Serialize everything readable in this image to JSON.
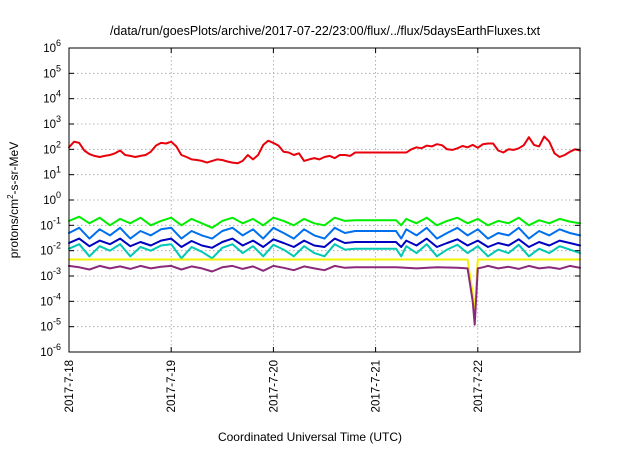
{
  "chart_data": {
    "type": "line",
    "title": "/data/run/goesPlots/archive/2017-07-22/23:00/flux/../flux/5daysEarthFluxes.txt",
    "xlabel": "Coordinated Universal Time (UTC)",
    "ylabel_main": "protons/cm",
    "ylabel_sup": "2",
    "ylabel_tail": "-s-sr-MeV",
    "x_ticks": [
      {
        "day": 0,
        "label": "2017-7-18"
      },
      {
        "day": 1,
        "label": "2017-7-19"
      },
      {
        "day": 2,
        "label": "2017-7-20"
      },
      {
        "day": 3,
        "label": "2017-7-21"
      },
      {
        "day": 4,
        "label": "2017-7-22"
      }
    ],
    "y_ticks": [
      {
        "exp": -6,
        "label": "10",
        "sup": "-6"
      },
      {
        "exp": -5,
        "label": "10",
        "sup": "-5"
      },
      {
        "exp": -4,
        "label": "10",
        "sup": "-4"
      },
      {
        "exp": -3,
        "label": "10",
        "sup": "-3"
      },
      {
        "exp": -2,
        "label": "10",
        "sup": "-2"
      },
      {
        "exp": -1,
        "label": "10",
        "sup": "-1"
      },
      {
        "exp": 0,
        "label": "10",
        "sup": "0"
      },
      {
        "exp": 1,
        "label": "10",
        "sup": "1"
      },
      {
        "exp": 2,
        "label": "10",
        "sup": "2"
      },
      {
        "exp": 3,
        "label": "10",
        "sup": "3"
      },
      {
        "exp": 4,
        "label": "10",
        "sup": "4"
      },
      {
        "exp": 5,
        "label": "10",
        "sup": "5"
      },
      {
        "exp": 6,
        "label": "10",
        "sup": "6"
      }
    ],
    "xlim_days": [
      0,
      5
    ],
    "ylim_log10": [
      -6,
      6
    ],
    "y_scale": "log",
    "grid": true,
    "series": [
      {
        "color": "#e8000b",
        "x": [
          0,
          0.05,
          0.1,
          0.15,
          0.2,
          0.25,
          0.3,
          0.35,
          0.4,
          0.45,
          0.5,
          0.55,
          0.6,
          0.65,
          0.7,
          0.75,
          0.8,
          0.85,
          0.9,
          0.95,
          1.0,
          1.05,
          1.1,
          1.15,
          1.2,
          1.25,
          1.3,
          1.35,
          1.4,
          1.45,
          1.5,
          1.55,
          1.6,
          1.65,
          1.7,
          1.75,
          1.8,
          1.85,
          1.9,
          1.95,
          2.0,
          2.05,
          2.1,
          2.15,
          2.2,
          2.25,
          2.3,
          2.35,
          2.4,
          2.45,
          2.5,
          2.55,
          2.6,
          2.65,
          2.7,
          2.75,
          2.8,
          3.0,
          3.2,
          3.3,
          3.35,
          3.4,
          3.45,
          3.5,
          3.55,
          3.6,
          3.65,
          3.7,
          3.75,
          3.8,
          3.85,
          3.9,
          3.95,
          4.0,
          4.05,
          4.1,
          4.15,
          4.2,
          4.25,
          4.3,
          4.35,
          4.4,
          4.45,
          4.5,
          4.55,
          4.6,
          4.65,
          4.7,
          4.75,
          4.8,
          4.85,
          4.9,
          4.95,
          5.0
        ],
        "y": [
          120,
          200,
          180,
          90,
          65,
          55,
          50,
          55,
          60,
          70,
          90,
          60,
          55,
          50,
          55,
          60,
          80,
          140,
          180,
          170,
          200,
          130,
          60,
          50,
          40,
          38,
          35,
          30,
          35,
          40,
          38,
          33,
          30,
          28,
          35,
          60,
          40,
          60,
          150,
          220,
          180,
          140,
          80,
          75,
          60,
          70,
          35,
          40,
          45,
          40,
          50,
          55,
          45,
          60,
          60,
          55,
          75,
          75,
          75,
          75,
          100,
          120,
          110,
          140,
          130,
          160,
          145,
          100,
          95,
          110,
          135,
          120,
          150,
          115,
          160,
          170,
          170,
          90,
          75,
          100,
          95,
          110,
          145,
          300,
          150,
          130,
          320,
          200,
          70,
          50,
          60,
          80,
          100,
          90
        ]
      },
      {
        "color": "#00ee00",
        "x": [
          0,
          0.1,
          0.2,
          0.3,
          0.4,
          0.5,
          0.6,
          0.7,
          0.8,
          0.9,
          1.0,
          1.1,
          1.2,
          1.3,
          1.4,
          1.5,
          1.6,
          1.7,
          1.8,
          1.9,
          2.0,
          2.1,
          2.2,
          2.3,
          2.4,
          2.5,
          2.6,
          2.7,
          2.8,
          3.0,
          3.2,
          3.25,
          3.3,
          3.4,
          3.5,
          3.6,
          3.7,
          3.8,
          3.9,
          4.0,
          4.1,
          4.2,
          4.3,
          4.4,
          4.5,
          4.6,
          4.7,
          4.8,
          4.9,
          5.0
        ],
        "y": [
          0.15,
          0.22,
          0.12,
          0.2,
          0.1,
          0.18,
          0.12,
          0.2,
          0.1,
          0.15,
          0.2,
          0.1,
          0.18,
          0.12,
          0.08,
          0.15,
          0.2,
          0.12,
          0.18,
          0.1,
          0.2,
          0.15,
          0.1,
          0.18,
          0.12,
          0.1,
          0.2,
          0.15,
          0.16,
          0.16,
          0.16,
          0.1,
          0.18,
          0.12,
          0.2,
          0.1,
          0.15,
          0.2,
          0.12,
          0.18,
          0.1,
          0.15,
          0.12,
          0.2,
          0.1,
          0.16,
          0.12,
          0.18,
          0.14,
          0.12
        ]
      },
      {
        "color": "#0070ee",
        "x": [
          0,
          0.1,
          0.2,
          0.3,
          0.4,
          0.5,
          0.6,
          0.7,
          0.8,
          0.9,
          1.0,
          1.1,
          1.2,
          1.3,
          1.4,
          1.5,
          1.6,
          1.7,
          1.8,
          1.9,
          2.0,
          2.1,
          2.2,
          2.3,
          2.4,
          2.5,
          2.6,
          2.7,
          2.8,
          3.0,
          3.2,
          3.25,
          3.3,
          3.4,
          3.5,
          3.6,
          3.7,
          3.8,
          3.9,
          4.0,
          4.1,
          4.2,
          4.3,
          4.4,
          4.5,
          4.6,
          4.7,
          4.8,
          4.9,
          5.0
        ],
        "y": [
          0.05,
          0.08,
          0.03,
          0.07,
          0.04,
          0.08,
          0.03,
          0.06,
          0.04,
          0.07,
          0.08,
          0.03,
          0.06,
          0.04,
          0.03,
          0.06,
          0.08,
          0.04,
          0.07,
          0.03,
          0.08,
          0.05,
          0.03,
          0.07,
          0.04,
          0.03,
          0.08,
          0.05,
          0.06,
          0.06,
          0.06,
          0.03,
          0.07,
          0.04,
          0.08,
          0.03,
          0.05,
          0.08,
          0.04,
          0.07,
          0.03,
          0.05,
          0.04,
          0.08,
          0.03,
          0.06,
          0.04,
          0.07,
          0.05,
          0.04
        ]
      },
      {
        "color": "#0000c0",
        "x": [
          0,
          0.1,
          0.2,
          0.3,
          0.4,
          0.5,
          0.6,
          0.7,
          0.8,
          0.9,
          1.0,
          1.1,
          1.2,
          1.3,
          1.4,
          1.5,
          1.6,
          1.7,
          1.8,
          1.9,
          2.0,
          2.1,
          2.2,
          2.3,
          2.4,
          2.5,
          2.6,
          2.7,
          2.8,
          3.0,
          3.2,
          3.25,
          3.3,
          3.4,
          3.5,
          3.6,
          3.7,
          3.8,
          3.9,
          4.0,
          4.1,
          4.2,
          4.3,
          4.4,
          4.5,
          4.6,
          4.7,
          4.8,
          4.9,
          5.0
        ],
        "y": [
          0.02,
          0.03,
          0.015,
          0.025,
          0.018,
          0.03,
          0.015,
          0.022,
          0.016,
          0.025,
          0.03,
          0.014,
          0.024,
          0.016,
          0.013,
          0.022,
          0.03,
          0.016,
          0.025,
          0.014,
          0.028,
          0.02,
          0.014,
          0.025,
          0.016,
          0.014,
          0.03,
          0.02,
          0.022,
          0.022,
          0.022,
          0.014,
          0.025,
          0.016,
          0.03,
          0.014,
          0.02,
          0.028,
          0.016,
          0.025,
          0.014,
          0.02,
          0.016,
          0.028,
          0.014,
          0.022,
          0.016,
          0.025,
          0.02,
          0.016
        ]
      },
      {
        "color": "#00c8b4",
        "x": [
          0,
          0.1,
          0.2,
          0.3,
          0.4,
          0.5,
          0.6,
          0.7,
          0.8,
          0.9,
          1.0,
          1.1,
          1.2,
          1.3,
          1.4,
          1.5,
          1.6,
          1.7,
          1.8,
          1.9,
          2.0,
          2.1,
          2.2,
          2.3,
          2.4,
          2.5,
          2.6,
          2.7,
          2.8,
          3.0,
          3.2,
          3.25,
          3.3,
          3.4,
          3.5,
          3.6,
          3.7,
          3.8,
          3.9,
          4.0,
          4.1,
          4.2,
          4.3,
          4.4,
          4.5,
          4.6,
          4.7,
          4.8,
          4.9,
          5.0
        ],
        "y": [
          0.012,
          0.018,
          0.006,
          0.015,
          0.01,
          0.018,
          0.006,
          0.014,
          0.01,
          0.016,
          0.018,
          0.005,
          0.014,
          0.009,
          0.005,
          0.013,
          0.018,
          0.008,
          0.015,
          0.006,
          0.017,
          0.011,
          0.006,
          0.015,
          0.008,
          0.006,
          0.018,
          0.011,
          0.012,
          0.012,
          0.012,
          0.006,
          0.015,
          0.008,
          0.018,
          0.006,
          0.011,
          0.017,
          0.008,
          0.015,
          0.006,
          0.011,
          0.008,
          0.017,
          0.006,
          0.012,
          0.008,
          0.015,
          0.011,
          0.008
        ]
      },
      {
        "color": "#f2f200",
        "x": [
          0,
          0.5,
          1.0,
          1.5,
          2.0,
          2.5,
          3.0,
          3.5,
          3.9,
          3.95,
          3.97,
          4.0,
          4.05,
          4.5,
          5.0
        ],
        "y": [
          0.0045,
          0.0045,
          0.0045,
          0.0045,
          0.0045,
          0.0045,
          0.0045,
          0.0045,
          0.0045,
          0.0002,
          4e-05,
          0.0045,
          0.0045,
          0.0045,
          0.0045
        ]
      },
      {
        "color": "#8b2a7a",
        "x": [
          0,
          0.1,
          0.2,
          0.3,
          0.4,
          0.5,
          0.6,
          0.7,
          0.8,
          0.9,
          1.0,
          1.1,
          1.2,
          1.3,
          1.4,
          1.5,
          1.6,
          1.7,
          1.8,
          1.9,
          2.0,
          2.1,
          2.2,
          2.3,
          2.4,
          2.5,
          2.6,
          2.7,
          2.8,
          3.0,
          3.2,
          3.4,
          3.6,
          3.8,
          3.9,
          3.95,
          3.97,
          4.0,
          4.05,
          4.1,
          4.2,
          4.3,
          4.4,
          4.5,
          4.6,
          4.7,
          4.8,
          4.9,
          5.0
        ],
        "y": [
          0.0025,
          0.0022,
          0.0018,
          0.0025,
          0.002,
          0.0024,
          0.0019,
          0.0025,
          0.002,
          0.0023,
          0.0025,
          0.0018,
          0.0024,
          0.002,
          0.0015,
          0.0022,
          0.0025,
          0.0019,
          0.0024,
          0.0016,
          0.0025,
          0.0021,
          0.0017,
          0.0024,
          0.002,
          0.0017,
          0.0025,
          0.0021,
          0.0022,
          0.0022,
          0.0022,
          0.002,
          0.0022,
          0.0021,
          0.002,
          0.0001,
          1.2e-05,
          0.002,
          0.0022,
          0.0025,
          0.002,
          0.0023,
          0.0019,
          0.0025,
          0.002,
          0.0022,
          0.0019,
          0.0025,
          0.0021
        ]
      }
    ]
  }
}
